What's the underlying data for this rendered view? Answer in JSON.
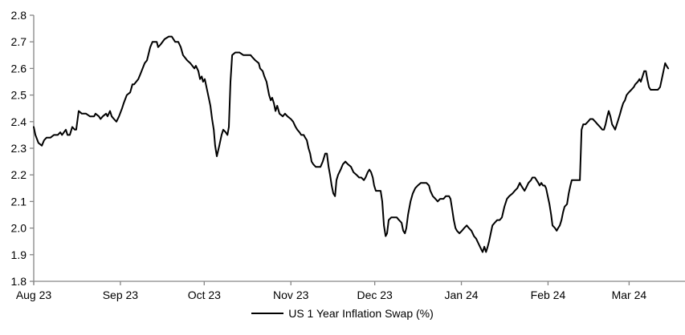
{
  "chart_data": {
    "type": "line",
    "title": "",
    "legend_position": "bottom-center",
    "grid": false,
    "background_color": "#ffffff",
    "axis_color": "#868686",
    "y_axis": {
      "min": 1.8,
      "max": 2.8,
      "tick_step": 0.1,
      "tick_labels": [
        "2.8",
        "2.7",
        "2.6",
        "2.5",
        "2.4",
        "2.3",
        "2.2",
        "2.1",
        "2.0",
        "1.9",
        "1.8"
      ]
    },
    "x_axis": {
      "start_date": "2023-08-01",
      "domain_days": [
        0,
        233
      ],
      "ticks": [
        {
          "label": "Aug 23",
          "day": 0
        },
        {
          "label": "Sep 23",
          "day": 31
        },
        {
          "label": "Oct 23",
          "day": 61
        },
        {
          "label": "Nov 23",
          "day": 92
        },
        {
          "label": "Dec 23",
          "day": 122
        },
        {
          "label": "Jan 24",
          "day": 153
        },
        {
          "label": "Feb 24",
          "day": 184
        },
        {
          "label": "Mar 24",
          "day": 213
        }
      ]
    },
    "series": [
      {
        "name": "US 1 Year Inflation Swap (%)",
        "color": "#000000",
        "line_width": 2,
        "points": [
          [
            0,
            2.38
          ],
          [
            0.6,
            2.35
          ],
          [
            1.7,
            2.32
          ],
          [
            2.9,
            2.31
          ],
          [
            3.7,
            2.33
          ],
          [
            4.6,
            2.34
          ],
          [
            6,
            2.34
          ],
          [
            7.2,
            2.35
          ],
          [
            8.6,
            2.35
          ],
          [
            9.5,
            2.36
          ],
          [
            10.1,
            2.35
          ],
          [
            11.5,
            2.37
          ],
          [
            12.1,
            2.35
          ],
          [
            12.9,
            2.35
          ],
          [
            13.8,
            2.38
          ],
          [
            14.7,
            2.37
          ],
          [
            15.2,
            2.37
          ],
          [
            16.1,
            2.44
          ],
          [
            17.2,
            2.43
          ],
          [
            18.7,
            2.43
          ],
          [
            20.1,
            2.42
          ],
          [
            21.6,
            2.42
          ],
          [
            22.1,
            2.43
          ],
          [
            23.3,
            2.42
          ],
          [
            23.9,
            2.41
          ],
          [
            24.7,
            2.42
          ],
          [
            25.9,
            2.43
          ],
          [
            26.4,
            2.42
          ],
          [
            27.3,
            2.44
          ],
          [
            27.9,
            2.42
          ],
          [
            28.7,
            2.41
          ],
          [
            29.6,
            2.4
          ],
          [
            30.5,
            2.42
          ],
          [
            31.6,
            2.45
          ],
          [
            32.2,
            2.47
          ],
          [
            33.3,
            2.5
          ],
          [
            34.5,
            2.51
          ],
          [
            35.3,
            2.54
          ],
          [
            35.9,
            2.54
          ],
          [
            37.4,
            2.56
          ],
          [
            38.2,
            2.58
          ],
          [
            39.7,
            2.62
          ],
          [
            40.5,
            2.63
          ],
          [
            41.7,
            2.68
          ],
          [
            42.5,
            2.7
          ],
          [
            44,
            2.7
          ],
          [
            44.5,
            2.68
          ],
          [
            45.4,
            2.69
          ],
          [
            46.8,
            2.71
          ],
          [
            48.3,
            2.72
          ],
          [
            49.4,
            2.72
          ],
          [
            50.6,
            2.7
          ],
          [
            51.7,
            2.7
          ],
          [
            52.6,
            2.68
          ],
          [
            53.4,
            2.65
          ],
          [
            54.9,
            2.63
          ],
          [
            56,
            2.62
          ],
          [
            57.5,
            2.6
          ],
          [
            58,
            2.61
          ],
          [
            58.9,
            2.59
          ],
          [
            59.5,
            2.56
          ],
          [
            60.1,
            2.57
          ],
          [
            60.6,
            2.55
          ],
          [
            61.2,
            2.56
          ],
          [
            61.8,
            2.53
          ],
          [
            62.4,
            2.5
          ],
          [
            63.2,
            2.46
          ],
          [
            63.8,
            2.41
          ],
          [
            64.4,
            2.37
          ],
          [
            64.9,
            2.31
          ],
          [
            65.5,
            2.27
          ],
          [
            66.4,
            2.31
          ],
          [
            67.2,
            2.35
          ],
          [
            67.8,
            2.37
          ],
          [
            68.7,
            2.36
          ],
          [
            69.3,
            2.35
          ],
          [
            69.8,
            2.38
          ],
          [
            70.4,
            2.55
          ],
          [
            71,
            2.65
          ],
          [
            72.1,
            2.66
          ],
          [
            73.6,
            2.66
          ],
          [
            75,
            2.65
          ],
          [
            76.4,
            2.65
          ],
          [
            77.6,
            2.65
          ],
          [
            78.4,
            2.64
          ],
          [
            79.3,
            2.63
          ],
          [
            80.5,
            2.62
          ],
          [
            81,
            2.6
          ],
          [
            81.9,
            2.59
          ],
          [
            82.5,
            2.57
          ],
          [
            83.3,
            2.55
          ],
          [
            84.2,
            2.5
          ],
          [
            84.8,
            2.48
          ],
          [
            85.3,
            2.49
          ],
          [
            85.9,
            2.47
          ],
          [
            86.5,
            2.44
          ],
          [
            87.1,
            2.46
          ],
          [
            87.9,
            2.43
          ],
          [
            89.1,
            2.42
          ],
          [
            89.9,
            2.43
          ],
          [
            90.8,
            2.42
          ],
          [
            92,
            2.41
          ],
          [
            92.8,
            2.4
          ],
          [
            93.7,
            2.38
          ],
          [
            94.3,
            2.37
          ],
          [
            95.1,
            2.36
          ],
          [
            95.7,
            2.35
          ],
          [
            96.6,
            2.35
          ],
          [
            97.1,
            2.34
          ],
          [
            97.7,
            2.33
          ],
          [
            98.3,
            2.3
          ],
          [
            98.9,
            2.28
          ],
          [
            99.4,
            2.25
          ],
          [
            100,
            2.24
          ],
          [
            100.9,
            2.23
          ],
          [
            101.7,
            2.23
          ],
          [
            102.6,
            2.23
          ],
          [
            103.4,
            2.25
          ],
          [
            104.3,
            2.28
          ],
          [
            104.9,
            2.28
          ],
          [
            105.5,
            2.23
          ],
          [
            106,
            2.2
          ],
          [
            106.6,
            2.16
          ],
          [
            107.2,
            2.13
          ],
          [
            107.8,
            2.12
          ],
          [
            108.3,
            2.18
          ],
          [
            108.9,
            2.2
          ],
          [
            109.8,
            2.22
          ],
          [
            110.6,
            2.24
          ],
          [
            111.5,
            2.25
          ],
          [
            112.4,
            2.24
          ],
          [
            113.5,
            2.23
          ],
          [
            114.4,
            2.21
          ],
          [
            115.5,
            2.2
          ],
          [
            116.4,
            2.19
          ],
          [
            117.2,
            2.19
          ],
          [
            118.1,
            2.18
          ],
          [
            118.7,
            2.19
          ],
          [
            119.5,
            2.21
          ],
          [
            120.1,
            2.22
          ],
          [
            120.7,
            2.21
          ],
          [
            121.3,
            2.19
          ],
          [
            121.8,
            2.16
          ],
          [
            122.4,
            2.14
          ],
          [
            123.3,
            2.14
          ],
          [
            124.1,
            2.14
          ],
          [
            124.7,
            2.1
          ],
          [
            125.3,
            2.01
          ],
          [
            125.9,
            1.97
          ],
          [
            126.4,
            1.98
          ],
          [
            127,
            2.03
          ],
          [
            127.9,
            2.04
          ],
          [
            129,
            2.04
          ],
          [
            129.9,
            2.04
          ],
          [
            130.7,
            2.03
          ],
          [
            131.6,
            2.02
          ],
          [
            132.2,
            1.99
          ],
          [
            132.8,
            1.98
          ],
          [
            133.3,
            2.0
          ],
          [
            133.9,
            2.05
          ],
          [
            134.8,
            2.1
          ],
          [
            135.6,
            2.13
          ],
          [
            136.5,
            2.15
          ],
          [
            137.4,
            2.16
          ],
          [
            138.5,
            2.17
          ],
          [
            139.7,
            2.17
          ],
          [
            140.5,
            2.17
          ],
          [
            141.4,
            2.16
          ],
          [
            141.9,
            2.14
          ],
          [
            142.8,
            2.12
          ],
          [
            143.7,
            2.11
          ],
          [
            144.5,
            2.1
          ],
          [
            145.4,
            2.11
          ],
          [
            146.6,
            2.11
          ],
          [
            147.4,
            2.12
          ],
          [
            148.6,
            2.12
          ],
          [
            149.1,
            2.11
          ],
          [
            149.7,
            2.07
          ],
          [
            150.3,
            2.03
          ],
          [
            150.9,
            2.0
          ],
          [
            151.4,
            1.99
          ],
          [
            152.3,
            1.98
          ],
          [
            153.2,
            1.99
          ],
          [
            154,
            2.0
          ],
          [
            154.9,
            2.01
          ],
          [
            155.7,
            2.0
          ],
          [
            156.6,
            1.99
          ],
          [
            157.5,
            1.97
          ],
          [
            158.3,
            1.96
          ],
          [
            159.2,
            1.94
          ],
          [
            160.1,
            1.92
          ],
          [
            160.6,
            1.91
          ],
          [
            161.2,
            1.93
          ],
          [
            161.8,
            1.91
          ],
          [
            162.4,
            1.93
          ],
          [
            162.9,
            1.95
          ],
          [
            163.5,
            1.98
          ],
          [
            164.1,
            2.01
          ],
          [
            164.9,
            2.02
          ],
          [
            165.8,
            2.03
          ],
          [
            166.7,
            2.03
          ],
          [
            167.5,
            2.04
          ],
          [
            168.4,
            2.08
          ],
          [
            169.3,
            2.11
          ],
          [
            170.1,
            2.12
          ],
          [
            171.3,
            2.13
          ],
          [
            172.1,
            2.14
          ],
          [
            173,
            2.15
          ],
          [
            173.9,
            2.17
          ],
          [
            174.4,
            2.16
          ],
          [
            175,
            2.15
          ],
          [
            175.6,
            2.14
          ],
          [
            176.1,
            2.15
          ],
          [
            177,
            2.17
          ],
          [
            177.9,
            2.18
          ],
          [
            178.4,
            2.19
          ],
          [
            179.3,
            2.19
          ],
          [
            179.9,
            2.18
          ],
          [
            180.5,
            2.17
          ],
          [
            181,
            2.16
          ],
          [
            181.6,
            2.17
          ],
          [
            182.2,
            2.16
          ],
          [
            182.8,
            2.16
          ],
          [
            183.3,
            2.15
          ],
          [
            183.9,
            2.12
          ],
          [
            184.5,
            2.09
          ],
          [
            185.1,
            2.05
          ],
          [
            185.6,
            2.01
          ],
          [
            186.5,
            2.0
          ],
          [
            187.1,
            1.99
          ],
          [
            187.6,
            2.0
          ],
          [
            188.2,
            2.01
          ],
          [
            188.8,
            2.03
          ],
          [
            189.4,
            2.06
          ],
          [
            189.9,
            2.08
          ],
          [
            190.8,
            2.09
          ],
          [
            191.4,
            2.13
          ],
          [
            192,
            2.16
          ],
          [
            192.5,
            2.18
          ],
          [
            193.4,
            2.18
          ],
          [
            194.3,
            2.18
          ],
          [
            195.4,
            2.18
          ],
          [
            196,
            2.37
          ],
          [
            196.6,
            2.39
          ],
          [
            197.4,
            2.39
          ],
          [
            198.3,
            2.4
          ],
          [
            199.1,
            2.41
          ],
          [
            200,
            2.41
          ],
          [
            200.9,
            2.4
          ],
          [
            201.7,
            2.39
          ],
          [
            202.6,
            2.38
          ],
          [
            203.4,
            2.37
          ],
          [
            204,
            2.37
          ],
          [
            204.6,
            2.39
          ],
          [
            205.2,
            2.42
          ],
          [
            205.7,
            2.44
          ],
          [
            206.3,
            2.42
          ],
          [
            206.9,
            2.39
          ],
          [
            207.5,
            2.38
          ],
          [
            208,
            2.37
          ],
          [
            208.6,
            2.39
          ],
          [
            209.2,
            2.41
          ],
          [
            209.8,
            2.43
          ],
          [
            210.3,
            2.45
          ],
          [
            210.9,
            2.47
          ],
          [
            211.5,
            2.48
          ],
          [
            212.1,
            2.5
          ],
          [
            212.9,
            2.51
          ],
          [
            213.8,
            2.52
          ],
          [
            214.7,
            2.53
          ],
          [
            215.2,
            2.54
          ],
          [
            216.1,
            2.55
          ],
          [
            216.7,
            2.56
          ],
          [
            217.2,
            2.55
          ],
          [
            217.8,
            2.57
          ],
          [
            218.4,
            2.59
          ],
          [
            219,
            2.59
          ],
          [
            219.5,
            2.56
          ],
          [
            220.1,
            2.53
          ],
          [
            220.7,
            2.52
          ],
          [
            221.6,
            2.52
          ],
          [
            222.4,
            2.52
          ],
          [
            223.3,
            2.52
          ],
          [
            224.1,
            2.53
          ],
          [
            224.7,
            2.56
          ],
          [
            225.3,
            2.59
          ],
          [
            225.9,
            2.62
          ],
          [
            226.4,
            2.61
          ],
          [
            227,
            2.6
          ]
        ]
      }
    ]
  }
}
